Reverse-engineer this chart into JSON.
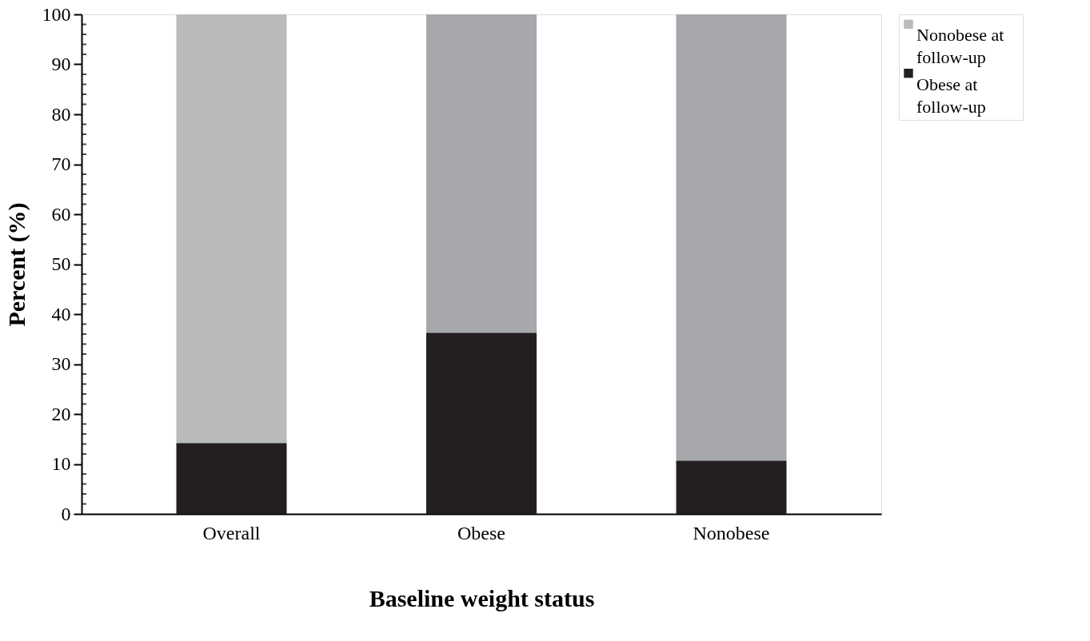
{
  "chart_data": {
    "type": "bar",
    "stacked": true,
    "xlabel": "Baseline weight status",
    "ylabel": "Percent (%)",
    "categories": [
      "Overall",
      "Obese",
      "Nonobese"
    ],
    "series": [
      {
        "name": "Obese at follow-up",
        "color": "#231f20",
        "values": [
          14.2,
          36.3,
          10.7
        ]
      },
      {
        "name": "Nonobese at follow-up",
        "color": "#b9babc",
        "colors": [
          "#b9babc",
          "#a7a8ab",
          "#a7a8ab"
        ],
        "values": [
          85.8,
          63.7,
          89.3
        ]
      }
    ],
    "ylim": [
      0,
      100
    ],
    "yticks": [
      0,
      {
        "value": 2,
        "label": null
      },
      {
        "value": 4,
        "label": null
      },
      {
        "value": 6,
        "label": null
      },
      {
        "value": 8,
        "label": null
      },
      10,
      {
        "value": 12,
        "label": null
      },
      {
        "value": 14,
        "label": null
      },
      {
        "value": 16,
        "label": null
      },
      {
        "value": 18,
        "label": null
      },
      20,
      {
        "value": 22,
        "label": null
      },
      {
        "value": 24,
        "label": null
      },
      {
        "value": 26,
        "label": null
      },
      {
        "value": 28,
        "label": null
      },
      30,
      {
        "value": 32,
        "label": null
      },
      {
        "value": 34,
        "label": null
      },
      {
        "value": 36,
        "label": null
      },
      {
        "value": 38,
        "label": null
      },
      40,
      {
        "value": 42,
        "label": null
      },
      {
        "value": 44,
        "label": null
      },
      {
        "value": 46,
        "label": null
      },
      {
        "value": 48,
        "label": null
      },
      50,
      {
        "value": 52,
        "label": null
      },
      {
        "value": 54,
        "label": null
      },
      {
        "value": 56,
        "label": null
      },
      {
        "value": 58,
        "label": null
      },
      60,
      {
        "value": 62,
        "label": null
      },
      {
        "value": 64,
        "label": null
      },
      {
        "value": 66,
        "label": null
      },
      {
        "value": 68,
        "label": null
      },
      70,
      {
        "value": 72,
        "label": null
      },
      {
        "value": 74,
        "label": null
      },
      {
        "value": 76,
        "label": null
      },
      {
        "value": 78,
        "label": null
      },
      80,
      {
        "value": 82,
        "label": null
      },
      {
        "value": 84,
        "label": null
      },
      {
        "value": 86,
        "label": null
      },
      {
        "value": 88,
        "label": null
      },
      90,
      {
        "value": 92,
        "label": null
      },
      {
        "value": 94,
        "label": null
      },
      {
        "value": 96,
        "label": null
      },
      {
        "value": 98,
        "label": null
      },
      100
    ],
    "grid": false,
    "legend": "top right"
  }
}
